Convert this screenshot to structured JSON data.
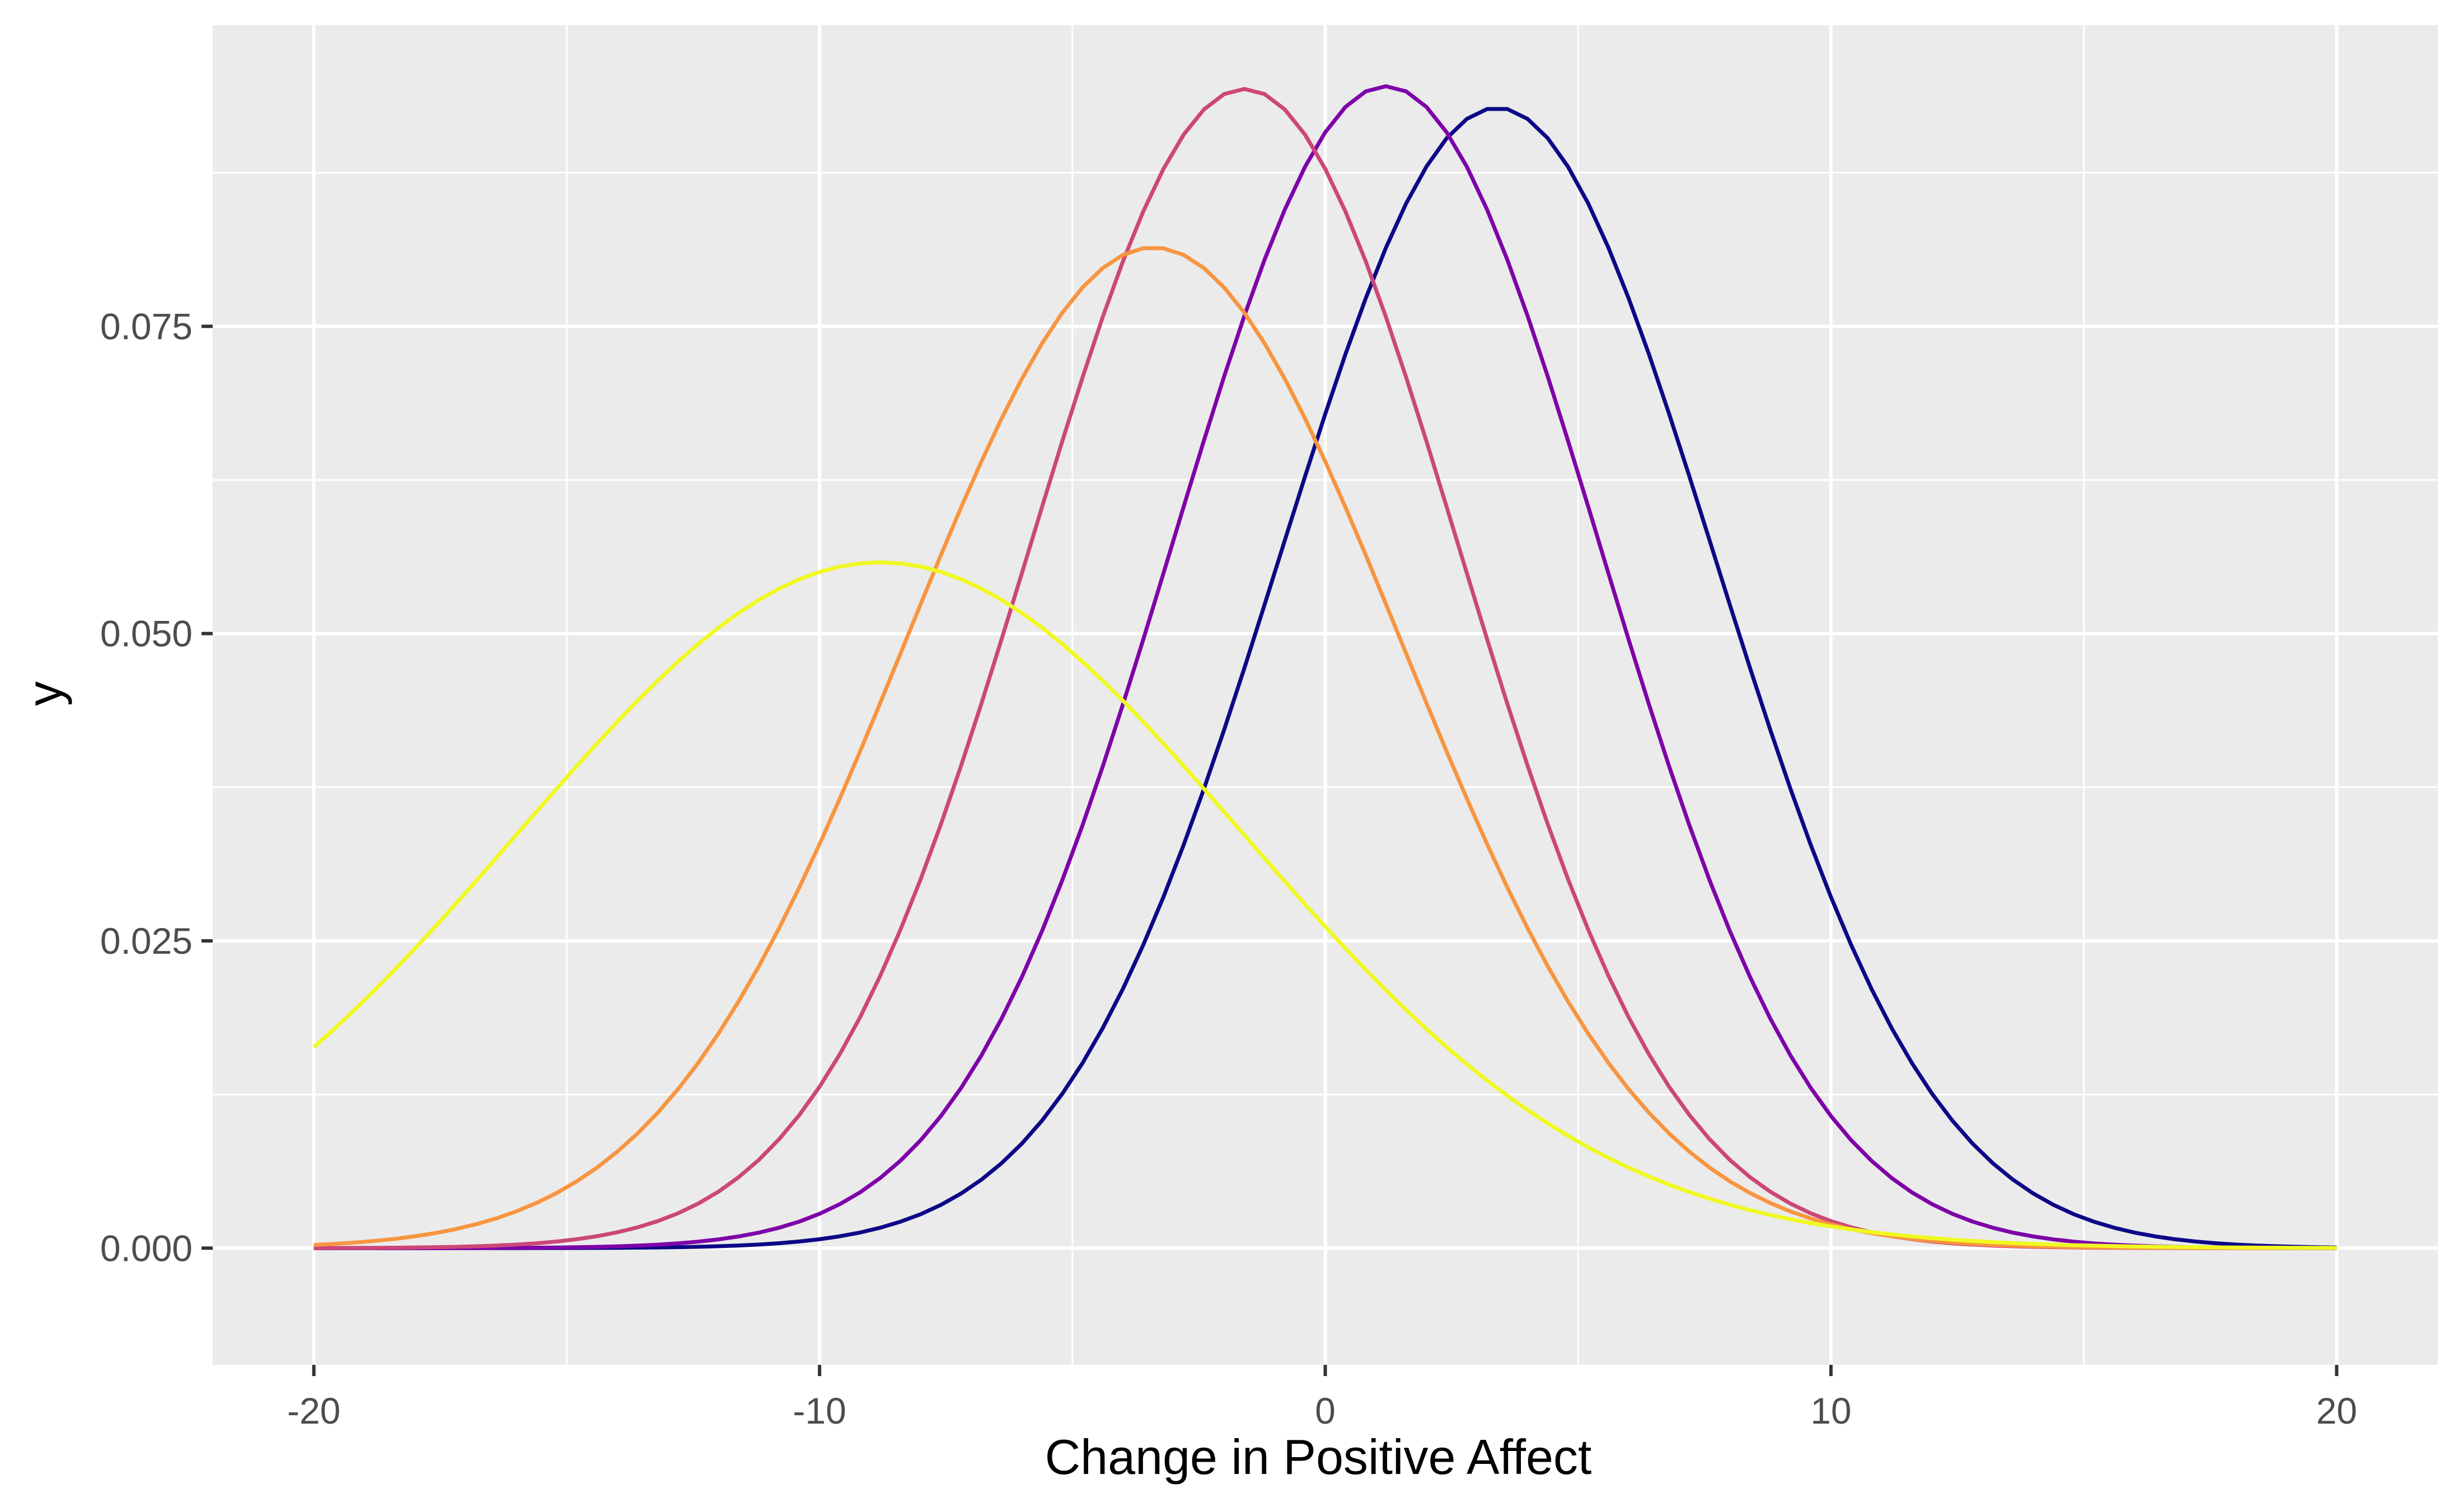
{
  "chart_data": {
    "type": "line",
    "title": "",
    "xlabel": "Change in Positive Affect",
    "ylabel": "y",
    "xlim": [
      -22,
      22
    ],
    "ylim": [
      -0.0095,
      0.0995
    ],
    "x_ticks": [
      -20,
      -10,
      0,
      10,
      20
    ],
    "x_tick_labels": [
      "-20",
      "-10",
      "0",
      "10",
      "20"
    ],
    "y_ticks": [
      0.0,
      0.025,
      0.05,
      0.075
    ],
    "y_tick_labels": [
      "0.000",
      "0.025",
      "0.050",
      "0.075"
    ],
    "grid": true,
    "legend": "none",
    "background_color": "#ebebeb",
    "grid_color": "#ffffff",
    "x_range": [
      -20,
      20
    ],
    "series": [
      {
        "color": "#0d0887",
        "shape": "normal",
        "mean": 3.4,
        "sd": 4.3
      },
      {
        "color": "#7e03a8",
        "shape": "normal",
        "mean": 1.2,
        "sd": 4.22
      },
      {
        "color": "#cc4778",
        "shape": "normal",
        "mean": -1.6,
        "sd": 4.23
      },
      {
        "color": "#f89540",
        "shape": "normal",
        "mean": -3.4,
        "sd": 4.9
      },
      {
        "color": "#f0f921",
        "shape": "normal",
        "mean": -8.8,
        "sd": 7.15
      }
    ]
  }
}
